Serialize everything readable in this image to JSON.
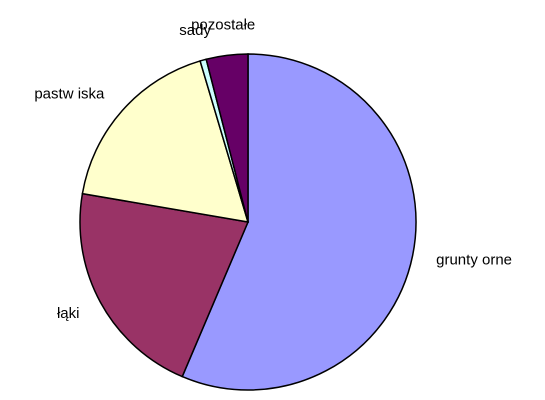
{
  "chart_data": {
    "type": "pie",
    "categories": [
      "grunty orne",
      "łąki",
      "pastw iska",
      "sady",
      "pozostałe"
    ],
    "values": [
      56.4,
      21.3,
      17.7,
      0.6,
      4.0
    ],
    "colors": [
      "#9999ff",
      "#993366",
      "#ffffcc",
      "#ccffff",
      "#660066"
    ]
  }
}
